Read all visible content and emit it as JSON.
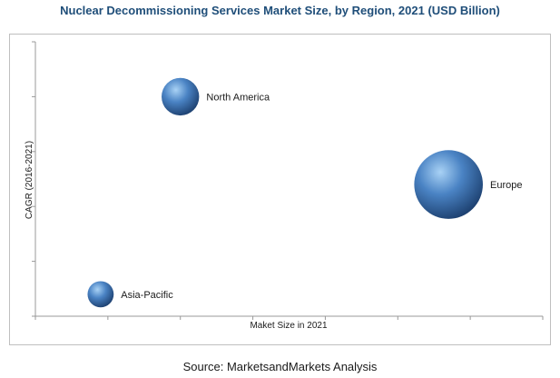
{
  "chart_data": {
    "type": "bubble",
    "title": "Nuclear Decommissioning Services Market Size, by Region, 2021 (USD Billion)",
    "xlabel": "Maket Size in 2021",
    "ylabel": "CAGR (2016-2021)",
    "source": "Source: MarketsandMarkets Analysis",
    "axis_ticks_labeled": false,
    "xlim": [
      0,
      7
    ],
    "ylim": [
      0,
      5
    ],
    "grid": false,
    "bubble_color": "#3a6fb0",
    "series": [
      {
        "label": "North America",
        "x": 2.0,
        "y": 4.0,
        "size": 1.15
      },
      {
        "label": "Europe",
        "x": 5.7,
        "y": 2.4,
        "size": 2.1
      },
      {
        "label": "Asia-Pacific",
        "x": 0.9,
        "y": 0.4,
        "size": 0.8
      }
    ]
  }
}
